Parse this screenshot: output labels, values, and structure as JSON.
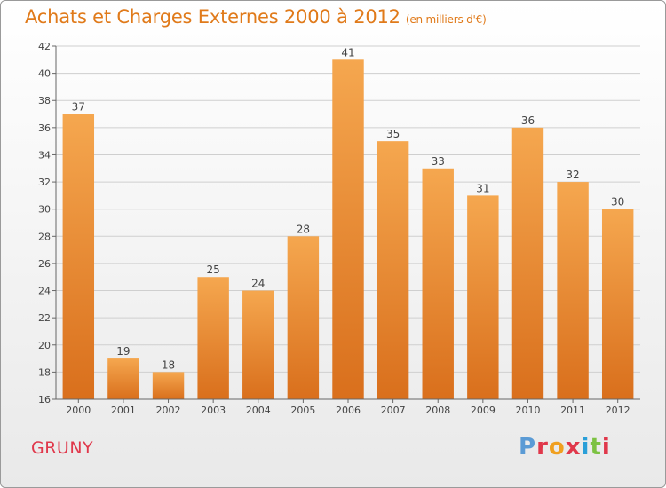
{
  "title": "Achats et Charges Externes 2000 à 2012",
  "subtitle": "(en milliers d'€)",
  "place_name": "GRUNY",
  "logo_text": "Proxiti",
  "logo_colors": [
    "#5b9bd5",
    "#e0384b",
    "#f0a020",
    "#e0384b",
    "#2a9fd8",
    "#7cc242",
    "#e0384b"
  ],
  "colors": {
    "bar_light": "#f5a74f",
    "bar_dark": "#d96f1c",
    "title": "#e07a1a",
    "place": "#e0384b"
  },
  "chart_data": {
    "type": "bar",
    "title": "Achats et Charges Externes 2000 à 2012",
    "subtitle": "(en milliers d'€)",
    "categories": [
      "2000",
      "2001",
      "2002",
      "2003",
      "2004",
      "2005",
      "2006",
      "2007",
      "2008",
      "2009",
      "2010",
      "2011",
      "2012"
    ],
    "values": [
      37,
      19,
      18,
      25,
      24,
      28,
      41,
      35,
      33,
      31,
      36,
      32,
      30
    ],
    "ylim": [
      16,
      42
    ],
    "yticks": [
      16,
      18,
      20,
      22,
      24,
      26,
      28,
      30,
      32,
      34,
      36,
      38,
      40,
      42
    ],
    "grid": true,
    "xlabel": "",
    "ylabel": ""
  }
}
